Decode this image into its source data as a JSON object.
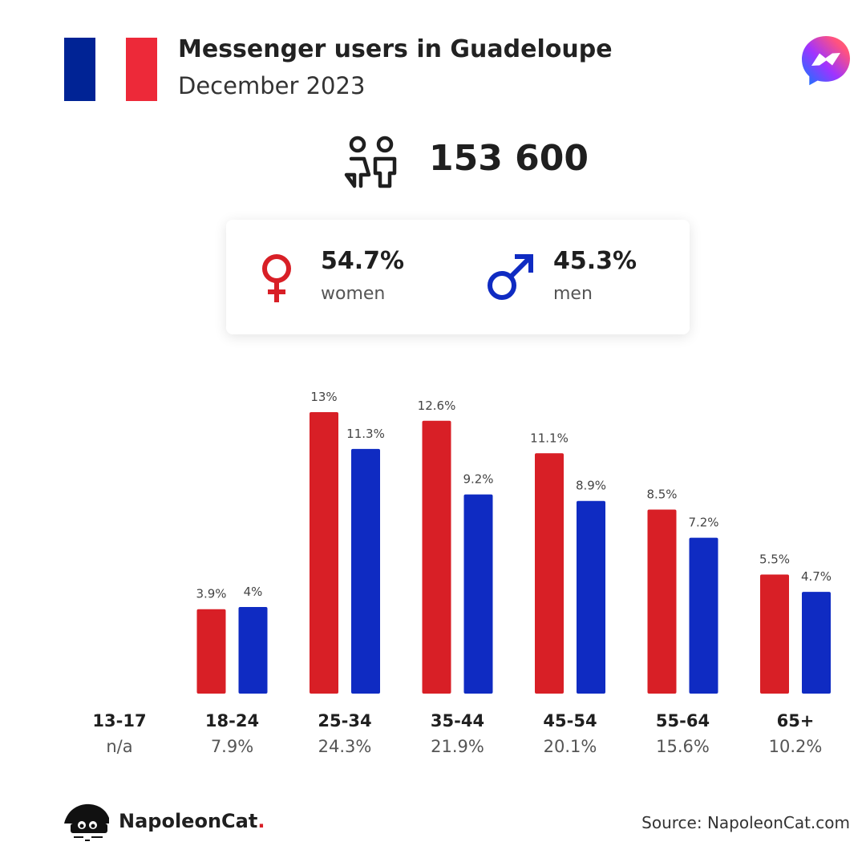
{
  "header": {
    "title": "Messenger users in Guadeloupe",
    "subtitle": "December 2023",
    "flag_colors": [
      "#002395",
      "#ffffff",
      "#ed2939"
    ],
    "flag_icon": "france-flag-icon",
    "app_icon": "messenger-logo-icon"
  },
  "total": {
    "icon": "people-icon",
    "value": "153 600"
  },
  "gender": {
    "women": {
      "pct": "54.7%",
      "label": "women",
      "icon": "female-symbol-icon",
      "color": "#d81f26"
    },
    "men": {
      "pct": "45.3%",
      "label": "men",
      "icon": "male-symbol-icon",
      "color": "#0f2bc2"
    }
  },
  "chart_data": {
    "type": "bar",
    "categories": [
      "13-17",
      "18-24",
      "25-34",
      "35-44",
      "45-54",
      "55-64",
      "65+"
    ],
    "category_totals": [
      "n/a",
      "7.9%",
      "24.3%",
      "21.9%",
      "20.1%",
      "15.6%",
      "10.2%"
    ],
    "series": [
      {
        "name": "women",
        "color": "#d81f26",
        "values": [
          null,
          3.9,
          13,
          12.6,
          11.1,
          8.5,
          5.5
        ],
        "labels": [
          "",
          "3.9%",
          "13%",
          "12.6%",
          "11.1%",
          "8.5%",
          "5.5%"
        ]
      },
      {
        "name": "men",
        "color": "#0f2bc2",
        "values": [
          null,
          4,
          11.3,
          9.2,
          8.9,
          7.2,
          4.7
        ],
        "labels": [
          "",
          "4%",
          "11.3%",
          "9.2%",
          "8.9%",
          "7.2%",
          "4.7%"
        ]
      }
    ],
    "ylim": [
      0,
      13
    ],
    "grid": false,
    "legend": "none"
  },
  "footer": {
    "brand_name": "NapoleonCat",
    "brand_dot": ".",
    "brand_icon": "napoleoncat-logo-icon",
    "source": "Source: NapoleonCat.com"
  }
}
